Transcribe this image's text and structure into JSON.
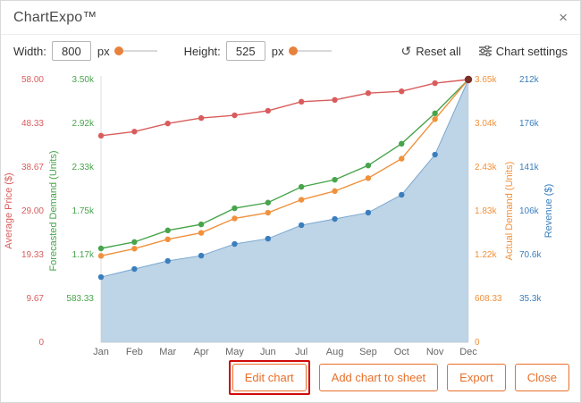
{
  "header": {
    "title": "ChartExpo™",
    "close_icon": "×"
  },
  "toolbar": {
    "width_label": "Width:",
    "width_value": "800",
    "width_unit": "px",
    "height_label": "Height:",
    "height_value": "525",
    "height_unit": "px",
    "reset_icon": "↺",
    "reset_label": "Reset all",
    "settings_label": "Chart settings"
  },
  "footer": {
    "buttons": [
      {
        "label": "Edit chart",
        "highlighted": true
      },
      {
        "label": "Add chart to sheet",
        "highlighted": false
      },
      {
        "label": "Export",
        "highlighted": false
      },
      {
        "label": "Close",
        "highlighted": false
      }
    ]
  },
  "chart_data": {
    "type": "line",
    "x": [
      "Jan",
      "Feb",
      "Mar",
      "Apr",
      "May",
      "Jun",
      "Jul",
      "Aug",
      "Sep",
      "Oct",
      "Nov",
      "Dec"
    ],
    "grid": false,
    "end_dot_color": "#7b3028",
    "axes": [
      {
        "id": "price",
        "title": "Average Price ($)",
        "color": "#d95c5c",
        "side": "left",
        "max": 58,
        "ticks": [
          "0",
          "9.67",
          "19.33",
          "29.00",
          "38.67",
          "48.33",
          "58.00"
        ]
      },
      {
        "id": "forecast",
        "title": "Forecasted Demand (Units)",
        "color": "#47a44b",
        "side": "left",
        "max": 3500,
        "ticks": [
          null,
          "583.33",
          "1.17k",
          "1.75k",
          "2.33k",
          "2.92k",
          "3.50k"
        ]
      },
      {
        "id": "actual",
        "title": "Actual Demand (Units)",
        "color": "#f0913c",
        "side": "right",
        "max": 3650,
        "ticks": [
          "0",
          "608.33",
          "1.22k",
          "1.83k",
          "2.43k",
          "3.04k",
          "3.65k"
        ]
      },
      {
        "id": "revenue",
        "title": "Revenue ($)",
        "color": "#3a7ebd",
        "side": "right",
        "max": 212000,
        "ticks": [
          null,
          "35.3k",
          "70.6k",
          "106k",
          "141k",
          "176k",
          "212k"
        ]
      }
    ],
    "series": [
      {
        "name": "Revenue ($)",
        "axis": "revenue",
        "type": "area",
        "color": "#3a7ebd",
        "area_fill": "#b3cde3",
        "values": [
          52600,
          59100,
          65600,
          69900,
          79300,
          83600,
          94500,
          99500,
          104600,
          119000,
          151400,
          212000
        ]
      },
      {
        "name": "Average Price ($)",
        "axis": "price",
        "type": "line",
        "color": "#d95c5c",
        "values": [
          45.6,
          46.5,
          48.3,
          49.5,
          50.1,
          51.1,
          53.1,
          53.5,
          55.0,
          55.4,
          57.2,
          58.0
        ]
      },
      {
        "name": "Forecasted Demand (Units)",
        "axis": "forecast",
        "type": "line",
        "color": "#47a44b",
        "values": [
          1250,
          1335,
          1490,
          1570,
          1785,
          1860,
          2070,
          2165,
          2355,
          2645,
          3050,
          3500
        ]
      },
      {
        "name": "Actual Demand (Units)",
        "axis": "actual",
        "type": "line",
        "color": "#f0913c",
        "values": [
          1200,
          1300,
          1430,
          1520,
          1720,
          1800,
          1980,
          2100,
          2280,
          2550,
          3100,
          3650
        ]
      }
    ]
  }
}
